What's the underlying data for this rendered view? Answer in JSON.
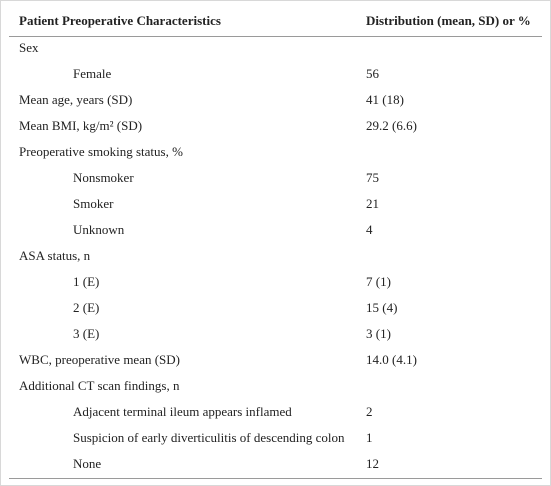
{
  "table": {
    "header": [
      "Patient Preoperative Characteristics",
      "Distribution (mean, SD) or %"
    ],
    "rows": [
      {
        "label": "Sex",
        "items": [
          {
            "label": "Female",
            "value": 56
          }
        ]
      },
      {
        "label": "Mean age, years (SD)",
        "value": "41 (18)"
      },
      {
        "label": "Mean BMI, kg/m² (SD)",
        "value": "29.2 (6.6)"
      },
      {
        "label": "Preoperative smoking status, %",
        "items": [
          {
            "label": "Nonsmoker",
            "value": 75
          },
          {
            "label": "Smoker",
            "value": 21
          },
          {
            "label": "Unknown",
            "value": 4
          }
        ]
      },
      {
        "label": "ASA status, n",
        "items": [
          {
            "label": "1 (E)",
            "value": "7 (1)"
          },
          {
            "label": "2 (E)",
            "value": "15 (4)"
          },
          {
            "label": "3 (E)",
            "value": "3 (1)"
          }
        ]
      },
      {
        "label": "WBC, preoperative mean (SD)",
        "value": "14.0 (4.1)"
      },
      {
        "label": "Additional CT scan findings, n",
        "items": [
          {
            "label": "Adjacent terminal ileum appears inflamed",
            "value": 2
          },
          {
            "label": "Suspicion of early diverticulitis of descending colon",
            "value": 1
          },
          {
            "label": "None",
            "value": 12
          }
        ]
      }
    ]
  }
}
